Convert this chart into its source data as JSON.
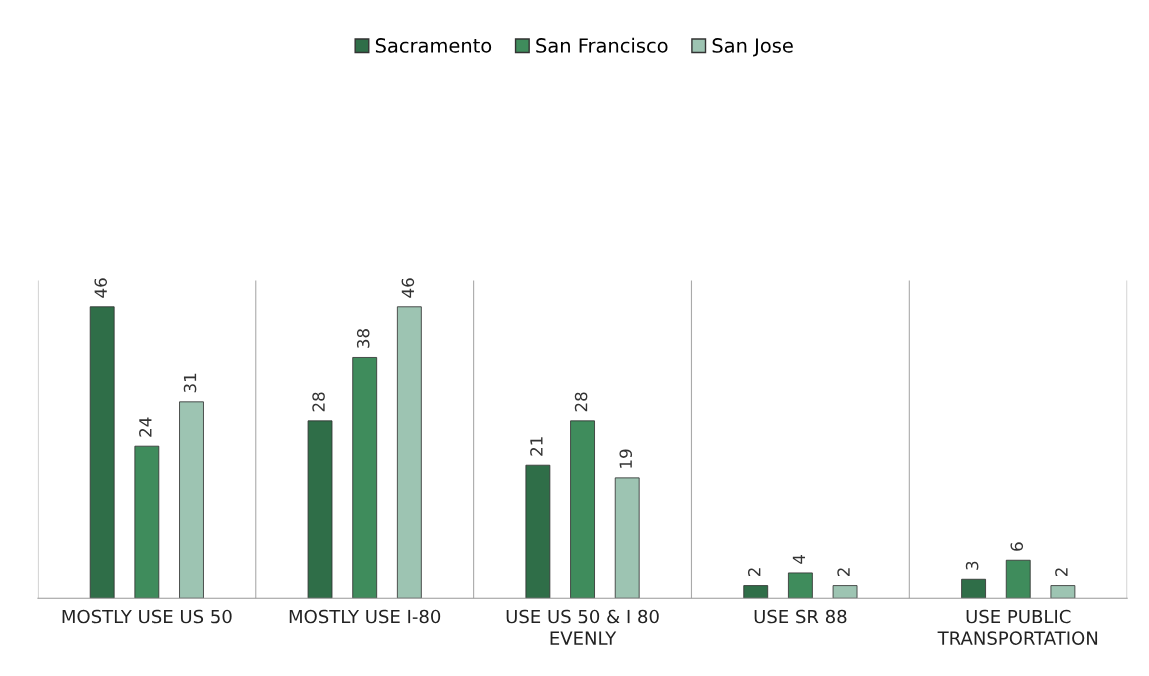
{
  "chart_data": {
    "type": "bar",
    "categories": [
      "MOSTLY USE US 50",
      "MOSTLY USE I-80",
      "USE US 50 & I 80\nEVENLY",
      "USE SR 88",
      "USE PUBLIC\nTRANSPORTATION"
    ],
    "series": [
      {
        "name": "Sacramento",
        "color": "#2f6e48",
        "values": [
          46,
          28,
          21,
          2,
          3
        ]
      },
      {
        "name": "San Francisco",
        "color": "#3f8c5c",
        "values": [
          24,
          38,
          28,
          4,
          6
        ]
      },
      {
        "name": "San Jose",
        "color": "#9dc4b2",
        "values": [
          31,
          46,
          19,
          2,
          2
        ]
      }
    ],
    "data_labels": true,
    "grid": false,
    "legend": "top"
  }
}
